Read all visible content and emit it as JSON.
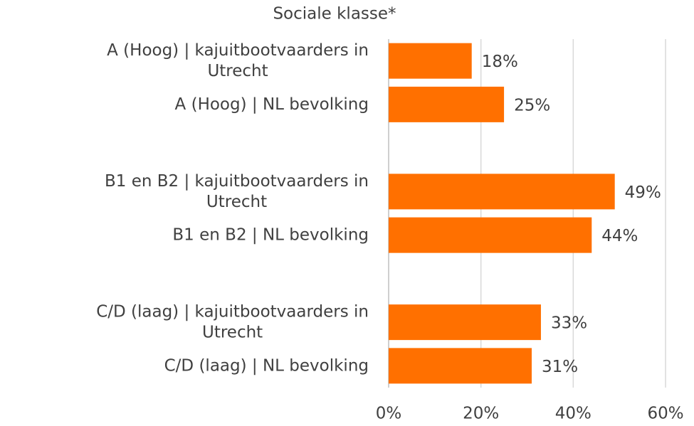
{
  "chart_data": {
    "type": "hbar",
    "title": "Sociale klasse*",
    "categories": [
      "A (Hoog) | kajuitbootvaarders in\nUtrecht",
      "A (Hoog) | NL bevolking",
      null,
      "B1 en B2 | kajuitbootvaarders in\nUtrecht",
      "B1 en B2 | NL bevolking",
      null,
      "C/D  (laag) | kajuitbootvaarders in\nUtrecht",
      "C/D (laag) | NL bevolking"
    ],
    "values": [
      18,
      25,
      null,
      49,
      44,
      null,
      33,
      31
    ],
    "value_labels": [
      "18%",
      "25%",
      null,
      "49%",
      "44%",
      null,
      "33%",
      "31%"
    ],
    "color": "#ff7000",
    "xlim": [
      0,
      60
    ],
    "xticks": [
      {
        "value": 0,
        "label": "0%"
      },
      {
        "value": 20,
        "label": "20%"
      },
      {
        "value": 40,
        "label": "40%"
      },
      {
        "value": 60,
        "label": "60%"
      }
    ],
    "grid": true
  }
}
